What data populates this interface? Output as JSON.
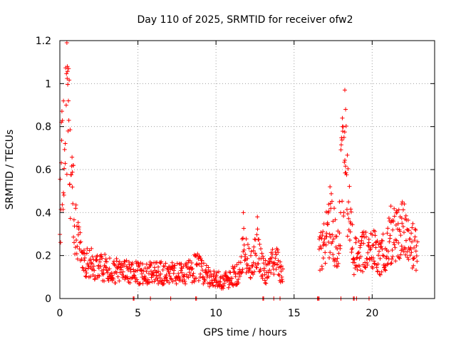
{
  "chart_data": {
    "type": "scatter",
    "title": "Day 110 of 2025, SRMTID for receiver ofw2",
    "xlabel": "GPS time / hours",
    "ylabel": "SRMTID / TECUs",
    "xlim": [
      0,
      24
    ],
    "ylim": [
      0,
      1.2
    ],
    "x_ticks": [
      0,
      5,
      10,
      15,
      20
    ],
    "x_tick_labels": [
      "0",
      "5",
      "10",
      "15",
      "20"
    ],
    "y_ticks": [
      0,
      0.2,
      0.4,
      0.6,
      0.8,
      1.0,
      1.2
    ],
    "y_tick_labels": [
      "0",
      "0.2",
      "0.4",
      "0.6",
      "0.8",
      "1",
      "1.2"
    ],
    "grid": true,
    "marker": "plus",
    "color": "#ff0000",
    "profile": [
      {
        "x": 0.0,
        "y": 0.35
      },
      {
        "x": 0.1,
        "y": 0.6
      },
      {
        "x": 0.3,
        "y": 0.7
      },
      {
        "x": 0.5,
        "y": 0.85
      },
      {
        "x": 0.7,
        "y": 0.55
      },
      {
        "x": 0.9,
        "y": 0.4
      },
      {
        "x": 1.2,
        "y": 0.25
      },
      {
        "x": 1.6,
        "y": 0.17
      },
      {
        "x": 2.5,
        "y": 0.15
      },
      {
        "x": 3.5,
        "y": 0.13
      },
      {
        "x": 5.0,
        "y": 0.12
      },
      {
        "x": 6.5,
        "y": 0.12
      },
      {
        "x": 8.0,
        "y": 0.11
      },
      {
        "x": 8.8,
        "y": 0.15
      },
      {
        "x": 9.5,
        "y": 0.1
      },
      {
        "x": 10.5,
        "y": 0.08
      },
      {
        "x": 11.5,
        "y": 0.12
      },
      {
        "x": 11.8,
        "y": 0.25
      },
      {
        "x": 12.2,
        "y": 0.14
      },
      {
        "x": 12.6,
        "y": 0.25
      },
      {
        "x": 13.2,
        "y": 0.12
      },
      {
        "x": 13.8,
        "y": 0.18
      },
      {
        "x": 14.2,
        "y": 0.12
      }
    ],
    "profile_late": [
      {
        "x": 16.6,
        "y": 0.2
      },
      {
        "x": 17.0,
        "y": 0.28
      },
      {
        "x": 17.4,
        "y": 0.35
      },
      {
        "x": 17.8,
        "y": 0.2
      },
      {
        "x": 18.0,
        "y": 0.5
      },
      {
        "x": 18.2,
        "y": 0.7
      },
      {
        "x": 18.5,
        "y": 0.4
      },
      {
        "x": 18.8,
        "y": 0.2
      },
      {
        "x": 19.3,
        "y": 0.22
      },
      {
        "x": 20.0,
        "y": 0.24
      },
      {
        "x": 20.5,
        "y": 0.18
      },
      {
        "x": 21.0,
        "y": 0.25
      },
      {
        "x": 21.5,
        "y": 0.3
      },
      {
        "x": 22.0,
        "y": 0.32
      },
      {
        "x": 22.5,
        "y": 0.25
      },
      {
        "x": 22.9,
        "y": 0.22
      }
    ],
    "peaks": [
      {
        "x": 0.1,
        "y": 0.82
      },
      {
        "x": 0.45,
        "y": 1.19
      },
      {
        "x": 0.48,
        "y": 1.08
      },
      {
        "x": 0.55,
        "y": 0.92
      },
      {
        "x": 0.85,
        "y": 0.62
      },
      {
        "x": 18.25,
        "y": 0.97
      },
      {
        "x": 18.3,
        "y": 0.88
      },
      {
        "x": 18.1,
        "y": 0.8
      },
      {
        "x": 11.75,
        "y": 0.4
      },
      {
        "x": 12.65,
        "y": 0.38
      },
      {
        "x": 21.2,
        "y": 0.43
      },
      {
        "x": 21.9,
        "y": 0.44
      },
      {
        "x": 17.3,
        "y": 0.52
      }
    ],
    "zero_points": [
      4.7,
      4.75,
      5.8,
      7.1,
      8.7,
      8.75,
      13.0,
      13.05,
      13.7,
      14.1,
      16.5,
      16.55,
      16.6,
      18.0,
      18.8,
      18.85,
      19.0,
      19.8
    ]
  }
}
